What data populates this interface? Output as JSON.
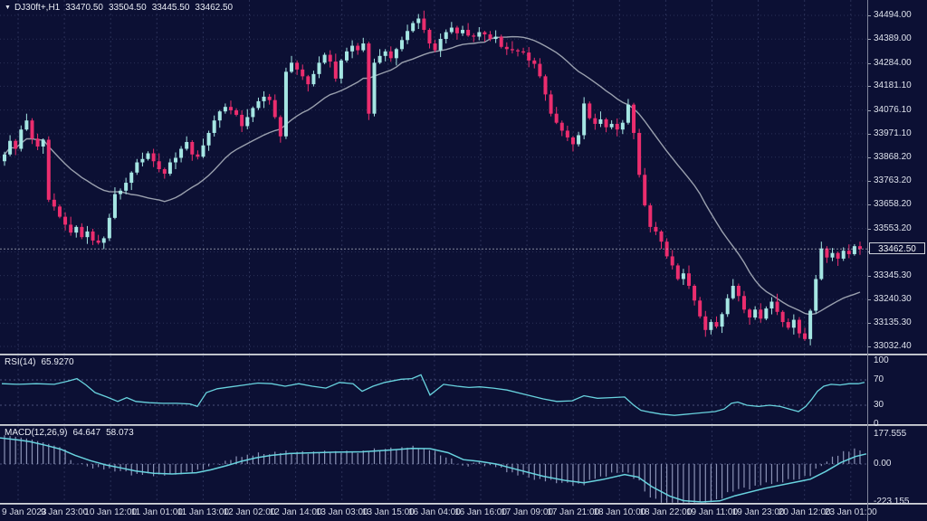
{
  "window": {
    "symbol": "DJ30ft+,H1",
    "ohlc": {
      "open": "33470.50",
      "high": "33504.50",
      "low": "33445.50",
      "close": "33462.50"
    }
  },
  "colors": {
    "background": "#0c1034",
    "grid": "#2a3057",
    "level_line": "#4a517a",
    "bull": "#a5e6e3",
    "bear": "#eb2d6e",
    "ma_line": "#9aa0ae",
    "indicator_line": "#68d2de",
    "histogram": "#99a1c4",
    "axis_text": "#dde1ec",
    "separator": "#a7abb5",
    "current_price_line": "#c3c8d2"
  },
  "time_axis": {
    "labels": [
      "9 Jan 2023",
      "9 Jan 23:00",
      "10 Jan 12:00",
      "11 Jan 01:00",
      "11 Jan 13:00",
      "12 Jan 02:00",
      "12 Jan 14:00",
      "13 Jan 03:00",
      "13 Jan 15:00",
      "16 Jan 04:00",
      "16 Jan 16:00",
      "17 Jan 09:00",
      "17 Jan 21:00",
      "18 Jan 10:00",
      "18 Jan 22:00",
      "19 Jan 11:00",
      "19 Jan 23:00",
      "20 Jan 12:00",
      "23 Jan 01:00"
    ],
    "first_x": 20,
    "step_x": 51.1
  },
  "chart_data": [
    {
      "type": "candlestick",
      "title": "DJ30ft+,H1",
      "timeframe": "H1",
      "current_bar": {
        "open": 33470.5,
        "high": 33504.5,
        "low": 33445.5,
        "close": 33462.5
      },
      "current_price": 33462.5,
      "ylim": [
        33032.4,
        34494.0
      ],
      "price_ticks": [
        34494.0,
        34389.0,
        34284.0,
        34181.1,
        34076.1,
        33971.1,
        33868.2,
        33763.2,
        33658.2,
        33553.2,
        33450.3,
        33345.3,
        33240.3,
        33135.3,
        33032.4
      ],
      "ma_period": 22,
      "closes": [
        33880,
        33940,
        33905,
        33990,
        34030,
        33950,
        33915,
        33945,
        33680,
        33650,
        33605,
        33570,
        33535,
        33560,
        33515,
        33540,
        33500,
        33490,
        33510,
        33600,
        33705,
        33720,
        33755,
        33800,
        33845,
        33860,
        33885,
        33850,
        33815,
        33795,
        33845,
        33865,
        33905,
        33935,
        33880,
        33870,
        33920,
        33975,
        34030,
        34070,
        34090,
        34075,
        34055,
        34005,
        34045,
        34085,
        34115,
        34135,
        34120,
        34045,
        33960,
        34245,
        34285,
        34255,
        34225,
        34190,
        34235,
        34285,
        34320,
        34290,
        34215,
        34295,
        34335,
        34360,
        34340,
        34370,
        34060,
        34285,
        34315,
        34335,
        34305,
        34345,
        34385,
        34425,
        34460,
        34480,
        34430,
        34370,
        34340,
        34390,
        34420,
        34440,
        34415,
        34430,
        34405,
        34400,
        34420,
        34410,
        34390,
        34400,
        34355,
        34345,
        34340,
        34335,
        34330,
        34295,
        34280,
        34225,
        34145,
        34060,
        34020,
        33985,
        33955,
        33925,
        33965,
        34105,
        34040,
        34015,
        34035,
        34000,
        34015,
        33990,
        34020,
        34100,
        33975,
        33790,
        33655,
        33560,
        33540,
        33495,
        33430,
        33390,
        33330,
        33355,
        33300,
        33235,
        33165,
        33105,
        33140,
        33120,
        33175,
        33245,
        33300,
        33255,
        33195,
        33160,
        33195,
        33155,
        33200,
        33230,
        33185,
        33140,
        33115,
        33150,
        33090,
        33065,
        33190,
        33330,
        33465,
        33425,
        33445,
        33420,
        33455,
        33440,
        33475,
        33462.5
      ],
      "wick_up_pattern": [
        12,
        25,
        8,
        18,
        30,
        10,
        22,
        6,
        15,
        28,
        9,
        20,
        35,
        7,
        16,
        24
      ],
      "wick_down_pattern": [
        20,
        8,
        28,
        12,
        6,
        24,
        16,
        32,
        10,
        18,
        7,
        26,
        14,
        22,
        9,
        30
      ]
    },
    {
      "type": "line",
      "name": "RSI(14)",
      "value": "65.9270",
      "ylim": [
        0,
        100
      ],
      "axis_ticks": [
        100,
        70,
        30,
        0
      ],
      "level_lines": [
        70,
        30
      ],
      "points": [
        [
          2,
          64
        ],
        [
          20,
          63
        ],
        [
          40,
          64
        ],
        [
          60,
          63
        ],
        [
          75,
          68
        ],
        [
          85,
          72
        ],
        [
          95,
          62
        ],
        [
          105,
          50
        ],
        [
          118,
          43
        ],
        [
          130,
          36
        ],
        [
          140,
          42
        ],
        [
          150,
          36
        ],
        [
          165,
          34
        ],
        [
          180,
          33
        ],
        [
          195,
          33
        ],
        [
          210,
          32
        ],
        [
          218,
          28
        ],
        [
          228,
          50
        ],
        [
          240,
          56
        ],
        [
          255,
          59
        ],
        [
          270,
          62
        ],
        [
          285,
          65
        ],
        [
          300,
          64
        ],
        [
          315,
          60
        ],
        [
          330,
          64
        ],
        [
          345,
          60
        ],
        [
          360,
          57
        ],
        [
          375,
          66
        ],
        [
          390,
          64
        ],
        [
          400,
          52
        ],
        [
          412,
          60
        ],
        [
          425,
          66
        ],
        [
          443,
          71
        ],
        [
          455,
          72
        ],
        [
          465,
          78
        ],
        [
          475,
          46
        ],
        [
          490,
          63
        ],
        [
          505,
          60
        ],
        [
          518,
          58
        ],
        [
          530,
          59
        ],
        [
          545,
          57
        ],
        [
          560,
          54
        ],
        [
          580,
          47
        ],
        [
          600,
          40
        ],
        [
          615,
          36
        ],
        [
          632,
          37
        ],
        [
          645,
          45
        ],
        [
          660,
          41
        ],
        [
          675,
          42
        ],
        [
          690,
          43
        ],
        [
          700,
          30
        ],
        [
          708,
          22
        ],
        [
          718,
          19
        ],
        [
          730,
          16
        ],
        [
          745,
          14
        ],
        [
          760,
          16
        ],
        [
          775,
          18
        ],
        [
          790,
          20
        ],
        [
          800,
          24
        ],
        [
          808,
          33
        ],
        [
          815,
          35
        ],
        [
          825,
          30
        ],
        [
          838,
          28
        ],
        [
          850,
          30
        ],
        [
          862,
          28
        ],
        [
          872,
          24
        ],
        [
          882,
          20
        ],
        [
          890,
          28
        ],
        [
          897,
          40
        ],
        [
          903,
          52
        ],
        [
          910,
          60
        ],
        [
          918,
          63
        ],
        [
          928,
          62
        ],
        [
          938,
          64
        ],
        [
          948,
          64
        ],
        [
          955,
          66
        ]
      ]
    },
    {
      "type": "macd",
      "name": "MACD(12,26,9)",
      "values": [
        "64.647",
        "58.073"
      ],
      "axis_ticks": [
        "177.555",
        "0.00",
        "-223.155"
      ],
      "ylim": [
        -233,
        223
      ],
      "signal_points": [
        [
          0,
          150
        ],
        [
          20,
          138
        ],
        [
          33,
          128
        ],
        [
          50,
          108
        ],
        [
          67,
          85
        ],
        [
          83,
          50
        ],
        [
          100,
          19
        ],
        [
          117,
          -5
        ],
        [
          133,
          -22
        ],
        [
          150,
          -40
        ],
        [
          170,
          -53
        ],
        [
          190,
          -57
        ],
        [
          217,
          -50
        ],
        [
          233,
          -33
        ],
        [
          250,
          -10
        ],
        [
          267,
          16
        ],
        [
          283,
          36
        ],
        [
          300,
          50
        ],
        [
          320,
          60
        ],
        [
          340,
          64
        ],
        [
          370,
          68
        ],
        [
          400,
          70
        ],
        [
          430,
          80
        ],
        [
          455,
          90
        ],
        [
          475,
          88
        ],
        [
          495,
          65
        ],
        [
          512,
          25
        ],
        [
          530,
          15
        ],
        [
          548,
          0
        ],
        [
          570,
          -30
        ],
        [
          600,
          -70
        ],
        [
          625,
          -95
        ],
        [
          645,
          -108
        ],
        [
          665,
          -90
        ],
        [
          690,
          -60
        ],
        [
          705,
          -75
        ],
        [
          720,
          -130
        ],
        [
          740,
          -185
        ],
        [
          755,
          -210
        ],
        [
          775,
          -218
        ],
        [
          795,
          -212
        ],
        [
          812,
          -182
        ],
        [
          845,
          -139
        ],
        [
          879,
          -104
        ],
        [
          895,
          -87
        ],
        [
          912,
          -43
        ],
        [
          929,
          9
        ],
        [
          945,
          43
        ],
        [
          957,
          58
        ]
      ],
      "hist_jitter": [
        -8,
        5,
        -3,
        9,
        -6,
        2,
        7,
        -10,
        4,
        -2,
        8,
        -5,
        3,
        -7,
        6,
        -4
      ]
    }
  ]
}
